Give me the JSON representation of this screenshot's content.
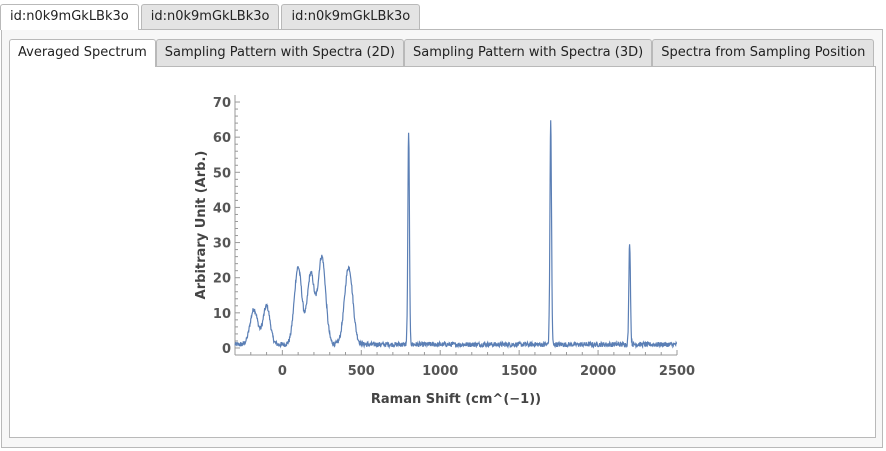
{
  "outer_tabs": [
    {
      "label": "id:n0k9mGkLBk3o",
      "active": true
    },
    {
      "label": "id:n0k9mGkLBk3o",
      "active": false
    },
    {
      "label": "id:n0k9mGkLBk3o",
      "active": false
    }
  ],
  "inner_tabs": [
    {
      "label": "Averaged Spectrum",
      "active": true
    },
    {
      "label": "Sampling Pattern with Spectra (2D)",
      "active": false
    },
    {
      "label": "Sampling Pattern with Spectra (3D)",
      "active": false
    },
    {
      "label": "Spectra from Sampling Position",
      "active": false
    }
  ],
  "colors": {
    "line": "#5b7fb5",
    "axis": "#999999"
  },
  "chart_data": {
    "type": "line",
    "xlabel": "Raman Shift  (cm^(−1))",
    "ylabel": "Arbitrary Unit  (Arb.)",
    "xlim": [
      -300,
      2500
    ],
    "ylim": [
      -2,
      72
    ],
    "xticks": [
      0,
      500,
      1000,
      1500,
      2000,
      2500
    ],
    "yticks": [
      0,
      10,
      20,
      30,
      40,
      50,
      60,
      70
    ],
    "xtick_labels": [
      "0",
      "500",
      "1000",
      "1500",
      "2000",
      "2500"
    ],
    "ytick_labels": [
      "0",
      "10",
      "20",
      "30",
      "40",
      "50",
      "60",
      "70"
    ],
    "baseline": 1,
    "peaks": [
      {
        "center": -180,
        "height": 10,
        "width": 24
      },
      {
        "center": -100,
        "height": 11,
        "width": 22
      },
      {
        "center": 100,
        "height": 22,
        "width": 24
      },
      {
        "center": 180,
        "height": 20,
        "width": 22
      },
      {
        "center": 250,
        "height": 25,
        "width": 24
      },
      {
        "center": 420,
        "height": 22,
        "width": 26
      },
      {
        "center": 800,
        "height": 60,
        "width": 5
      },
      {
        "center": 1700,
        "height": 64,
        "width": 5
      },
      {
        "center": 2200,
        "height": 29,
        "width": 5
      }
    ],
    "grid": false
  }
}
